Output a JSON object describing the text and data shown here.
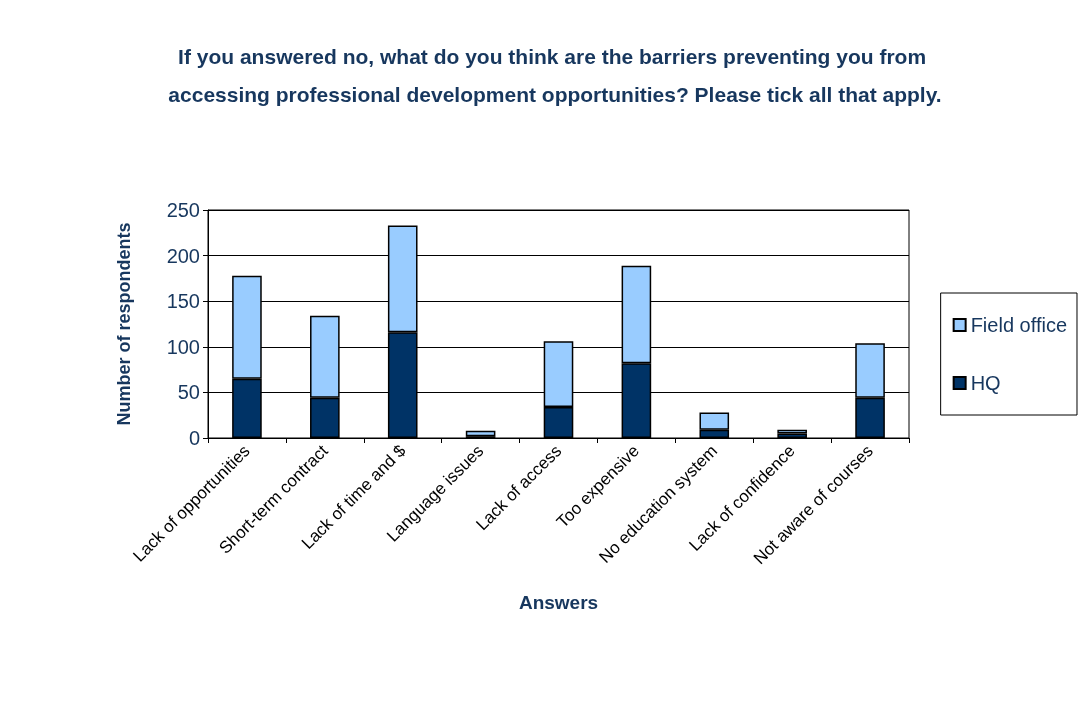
{
  "chart_data": {
    "type": "bar",
    "title": "If you answered no, what do you think are the barriers preventing you from accessing professional development opportunities? Please tick all that apply.",
    "xlabel": "Answers",
    "ylabel": "Number of respondents",
    "categories": [
      "Lack of opportunities",
      "Short-term contract",
      "Lack of time and $",
      "Language issues",
      "Lack of access",
      "Too expensive",
      "No education system",
      "Lack of confidence",
      "Not aware of courses"
    ],
    "series": [
      {
        "name": "HQ",
        "color": "#003366",
        "values": [
          65,
          44,
          116,
          2,
          34,
          82,
          9,
          5,
          44
        ]
      },
      {
        "name": "Field office",
        "color": "#99ccff",
        "values": [
          113,
          90,
          117,
          6,
          72,
          107,
          19,
          4,
          60
        ]
      }
    ],
    "stacked": true,
    "ylim": [
      0,
      250
    ],
    "yticks": [
      0,
      50,
      100,
      150,
      200,
      250
    ],
    "grid": "y",
    "legend": "right"
  }
}
